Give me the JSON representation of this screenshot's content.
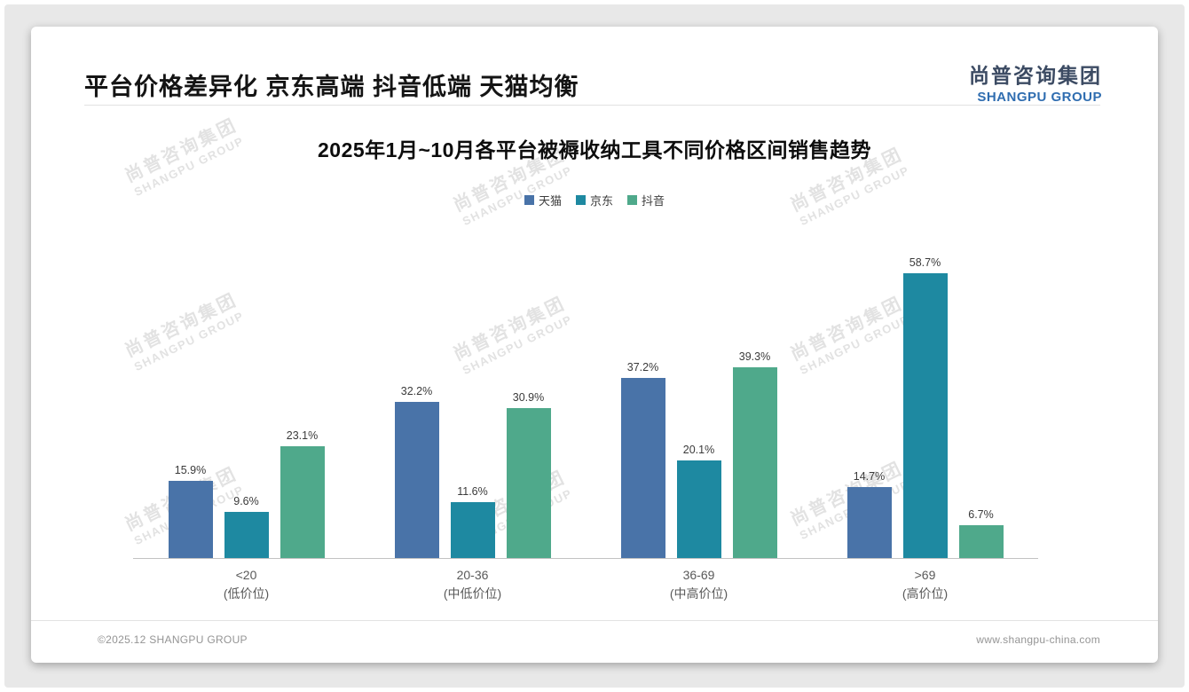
{
  "page": {
    "title": "平台价格差异化 京东高端 抖音低端 天猫均衡",
    "logo": {
      "cn": "尚普咨询集团",
      "en": "SHANGPU GROUP"
    },
    "footer": {
      "left": "©2025.12 SHANGPU GROUP",
      "right": "www.shangpu-china.com"
    },
    "watermark": {
      "line1": "尚普咨询集团",
      "line2": "SHANGPU GROUP"
    }
  },
  "chart_data": {
    "type": "bar",
    "title": "2025年1月~10月各平台被褥收纳工具不同价格区间销售趋势",
    "categories": [
      "<20",
      "20-36",
      "36-69",
      ">69"
    ],
    "category_sublabels": [
      "(低价位)",
      "(中低价位)",
      "(中高价位)",
      "(高价位)"
    ],
    "series": [
      {
        "name": "天猫",
        "color": "#4973a8",
        "values": [
          15.9,
          32.2,
          37.2,
          14.7
        ]
      },
      {
        "name": "京东",
        "color": "#1e89a1",
        "values": [
          9.6,
          11.6,
          20.1,
          58.7
        ]
      },
      {
        "name": "抖音",
        "color": "#4fa98b",
        "values": [
          23.1,
          30.9,
          39.3,
          6.7
        ]
      }
    ],
    "value_suffix": "%",
    "ylim": [
      0,
      64
    ],
    "legend_position": "top",
    "grid": false
  }
}
